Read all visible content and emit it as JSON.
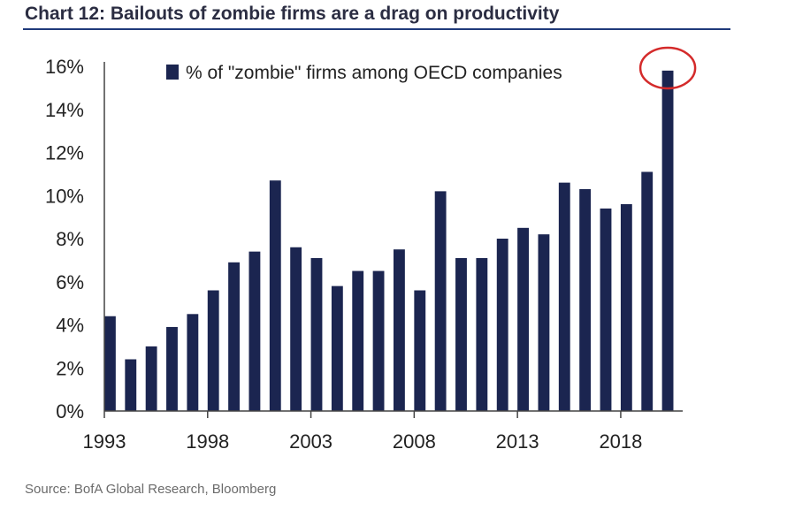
{
  "title": "Chart 12: Bailouts of zombie firms are a drag on productivity",
  "source": "Source: BofA Global Research, Bloomberg",
  "colors": {
    "bar": "#1b2550",
    "title": "#2b2d42",
    "rule": "#1f3a7a",
    "highlight": "#d42a2a",
    "axis": "#444444",
    "text": "#222222"
  },
  "chart_data": {
    "type": "bar",
    "title": "Chart 12: Bailouts of zombie firms are a drag on productivity",
    "xlabel": "",
    "ylabel": "",
    "x": [
      1993,
      1994,
      1995,
      1996,
      1997,
      1998,
      1999,
      2000,
      2001,
      2002,
      2003,
      2004,
      2005,
      2006,
      2007,
      2008,
      2009,
      2010,
      2011,
      2012,
      2013,
      2014,
      2015,
      2016,
      2017,
      2018,
      2019,
      2020
    ],
    "series": [
      {
        "name": "% of \"zombie\" firms among OECD companies",
        "values": [
          4.4,
          2.4,
          3.0,
          3.9,
          4.5,
          5.6,
          6.9,
          7.4,
          10.7,
          7.6,
          7.1,
          5.8,
          6.5,
          6.5,
          7.5,
          5.6,
          10.2,
          7.1,
          7.1,
          8.0,
          8.5,
          8.2,
          10.6,
          10.3,
          9.4,
          9.6,
          11.1,
          15.8
        ]
      }
    ],
    "ylim": [
      0,
      16
    ],
    "yticks": [
      0,
      2,
      4,
      6,
      8,
      10,
      12,
      14,
      16
    ],
    "ytick_labels": [
      "0%",
      "2%",
      "4%",
      "6%",
      "8%",
      "10%",
      "12%",
      "14%",
      "16%"
    ],
    "xticks": [
      1993,
      1998,
      2003,
      2008,
      2013,
      2018
    ],
    "xtick_labels": [
      "1993",
      "1998",
      "2003",
      "2008",
      "2013",
      "2018"
    ],
    "legend": "top-left inside plot",
    "grid": false,
    "highlight": {
      "x": 2020,
      "shape": "circle"
    }
  }
}
